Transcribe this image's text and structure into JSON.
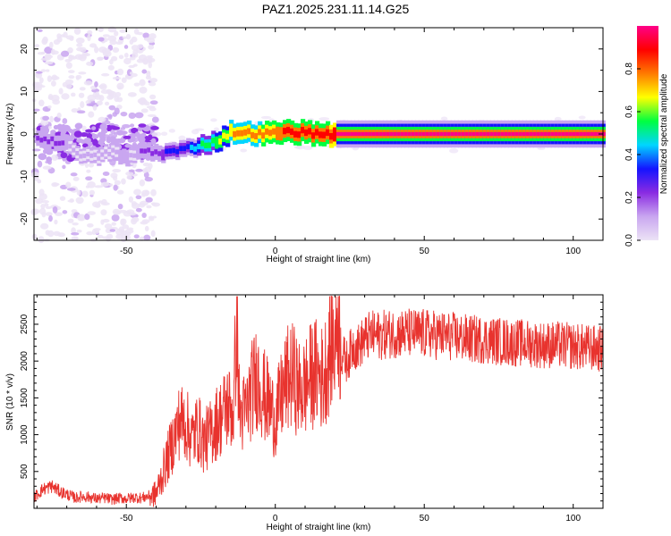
{
  "figure_title": "PAZ1.2025.231.11.14.G25",
  "chart_data": [
    {
      "type": "heatmap",
      "xlabel": "Height of straight line (km)",
      "ylabel": "Frequency (Hz)",
      "xlim": [
        -81,
        110
      ],
      "ylim": [
        -25,
        25
      ],
      "x_ticks": [
        -50,
        0,
        50,
        100
      ],
      "y_ticks": [
        -20,
        -10,
        0,
        10,
        20
      ],
      "colorbar": {
        "label": "Normalized spectral amplitude",
        "range": [
          0.0,
          1.0
        ],
        "ticks": [
          0.0,
          0.2,
          0.4,
          0.6,
          0.8
        ],
        "tick_labels": [
          "0.0",
          "0.2",
          "0.4",
          "0.6",
          "0.8"
        ],
        "colormap": [
          "#ece3f6",
          "#c9a6f0",
          "#8a2be2",
          "#1414ff",
          "#00d5ff",
          "#00ff40",
          "#ffff00",
          "#ff7a00",
          "#ff0000",
          "#ff0088"
        ]
      },
      "ridge": {
        "points": [
          {
            "x": -80,
            "f": -1.0,
            "a": 0.18
          },
          {
            "x": -75,
            "f": -1.5,
            "a": 0.22
          },
          {
            "x": -70,
            "f": -2.5,
            "a": 0.16
          },
          {
            "x": -65,
            "f": -5.0,
            "a": 0.12
          },
          {
            "x": -60,
            "f": -5.5,
            "a": 0.15
          },
          {
            "x": -55,
            "f": -4.0,
            "a": 0.13
          },
          {
            "x": -50,
            "f": -6.0,
            "a": 0.11
          },
          {
            "x": -45,
            "f": -3.8,
            "a": 0.18
          },
          {
            "x": -40,
            "f": -4.5,
            "a": 0.26
          },
          {
            "x": -35,
            "f": -4.2,
            "a": 0.3
          },
          {
            "x": -30,
            "f": -3.5,
            "a": 0.34
          },
          {
            "x": -25,
            "f": -2.5,
            "a": 0.5
          },
          {
            "x": -20,
            "f": -1.8,
            "a": 0.6
          },
          {
            "x": -15,
            "f": 0.5,
            "a": 0.72
          },
          {
            "x": -10,
            "f": 0.2,
            "a": 0.75
          },
          {
            "x": -5,
            "f": 0.0,
            "a": 0.8
          },
          {
            "x": 0,
            "f": 0.2,
            "a": 0.82
          },
          {
            "x": 5,
            "f": 0.6,
            "a": 0.85
          },
          {
            "x": 10,
            "f": 0.3,
            "a": 0.85
          },
          {
            "x": 15,
            "f": 0.0,
            "a": 0.88
          },
          {
            "x": 20,
            "f": 0.0,
            "a": 0.95
          },
          {
            "x": 50,
            "f": 0.0,
            "a": 0.95
          },
          {
            "x": 80,
            "f": 0.0,
            "a": 0.95
          },
          {
            "x": 110,
            "f": 0.0,
            "a": 0.95
          }
        ]
      },
      "scatter_noise_region": [
        -81,
        -40
      ]
    },
    {
      "type": "line",
      "xlabel": "Height of straight line (km)",
      "ylabel": "SNR (10 * v/v)",
      "xlim": [
        -81,
        110
      ],
      "ylim": [
        0,
        2900
      ],
      "x_ticks": [
        -50,
        0,
        50,
        100
      ],
      "y_ticks": [
        500,
        1000,
        1500,
        2000,
        2500
      ],
      "color": "#e8332e",
      "series": [
        {
          "name": "SNR",
          "x": [
            -81,
            -78,
            -75,
            -72,
            -70,
            -67,
            -65,
            -62,
            -60,
            -57,
            -55,
            -52,
            -50,
            -47,
            -45,
            -43,
            -41,
            -40,
            -38,
            -36,
            -34,
            -32,
            -30,
            -28,
            -26,
            -24,
            -22,
            -20,
            -18,
            -16,
            -14,
            -13,
            -12,
            -10,
            -8,
            -6,
            -4,
            -2,
            0,
            2,
            4,
            6,
            8,
            10,
            12,
            14,
            16,
            18,
            19,
            20,
            21,
            22,
            24,
            26,
            28,
            30,
            32,
            35,
            40,
            45,
            50,
            55,
            60,
            65,
            70,
            75,
            80,
            85,
            90,
            95,
            100,
            105,
            110
          ],
          "y": [
            150,
            260,
            300,
            220,
            190,
            140,
            160,
            150,
            130,
            140,
            120,
            140,
            130,
            150,
            140,
            160,
            180,
            200,
            450,
            700,
            950,
            1200,
            1150,
            950,
            1100,
            900,
            1000,
            1150,
            1250,
            1400,
            1300,
            2650,
            1250,
            1300,
            1600,
            1800,
            1550,
            1400,
            1200,
            1500,
            1750,
            1800,
            1600,
            1650,
            1800,
            1850,
            1750,
            2100,
            2300,
            2200,
            2750,
            2100,
            2000,
            2200,
            2200,
            2300,
            2350,
            2350,
            2380,
            2380,
            2370,
            2350,
            2330,
            2300,
            2290,
            2270,
            2250,
            2240,
            2220,
            2220,
            2200,
            2180,
            2160
          ]
        }
      ]
    }
  ]
}
